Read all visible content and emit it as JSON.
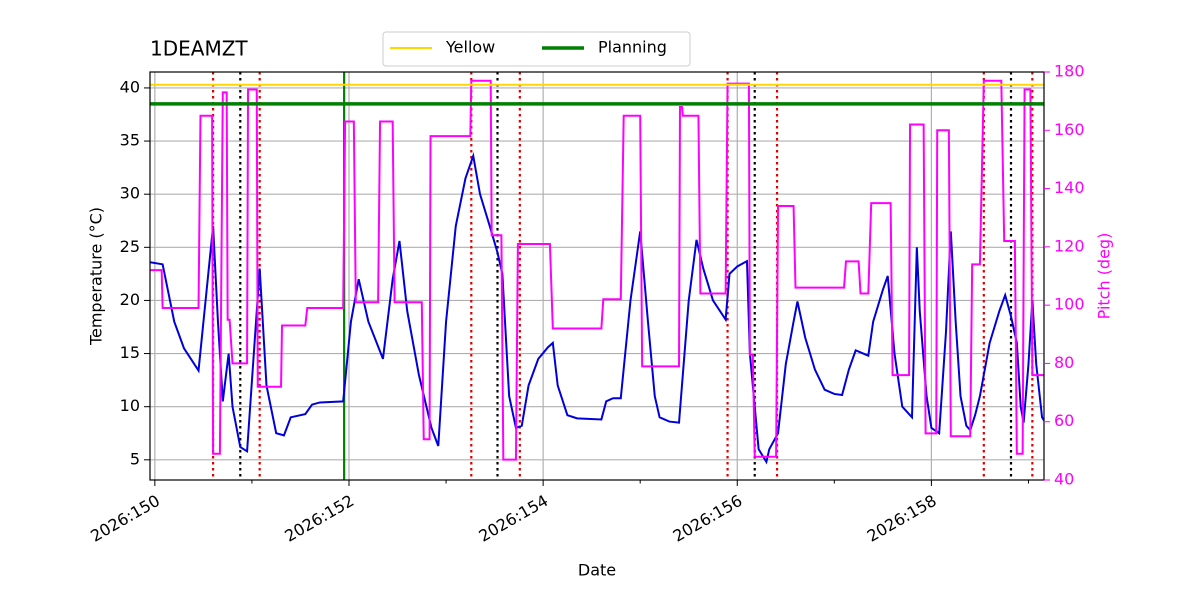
{
  "chart_data": {
    "type": "line",
    "title": "1DEAMZT",
    "xlabel": "Date",
    "ylabel": "Temperature (°C)",
    "y2label": "Pitch (deg)",
    "y2color": "#ff00ff",
    "xlim": [
      149.95,
      159.16
    ],
    "ylim": [
      3.1,
      41.5
    ],
    "y2lim": [
      40,
      180
    ],
    "xticks": [
      {
        "value": 150,
        "label": "2026:150"
      },
      {
        "value": 152,
        "label": "2026:152"
      },
      {
        "value": 154,
        "label": "2026:154"
      },
      {
        "value": 156,
        "label": "2026:156"
      },
      {
        "value": 158,
        "label": "2026:158"
      }
    ],
    "xminorticks": [
      151,
      153,
      155,
      157,
      159
    ],
    "yticks": [
      5,
      10,
      15,
      20,
      25,
      30,
      35,
      40
    ],
    "y2ticks": [
      40,
      60,
      80,
      100,
      120,
      140,
      160,
      180
    ],
    "grid": true,
    "legend": "upper center",
    "series": [
      {
        "color": "#0000dd",
        "axis": "y",
        "x": [
          149.95,
          150.08,
          150.2,
          150.3,
          150.45,
          150.6,
          150.65,
          150.7,
          150.76,
          150.8,
          150.88,
          150.95,
          151.08,
          151.15,
          151.25,
          151.33,
          151.4,
          151.55,
          151.62,
          151.7,
          151.94,
          152.02,
          152.1,
          152.2,
          152.35,
          152.45,
          152.52,
          152.6,
          152.72,
          152.85,
          152.92,
          153.0,
          153.1,
          153.2,
          153.28,
          153.35,
          153.45,
          153.53,
          153.58,
          153.65,
          153.72,
          153.78,
          153.85,
          153.95,
          154.05,
          154.1,
          154.15,
          154.25,
          154.35,
          154.6,
          154.65,
          154.72,
          154.8,
          154.9,
          155.0,
          155.08,
          155.15,
          155.2,
          155.3,
          155.4,
          155.5,
          155.58,
          155.65,
          155.75,
          155.88,
          155.92,
          156.0,
          156.1,
          156.13,
          156.22,
          156.3,
          156.33,
          156.42,
          156.5,
          156.58,
          156.62,
          156.7,
          156.8,
          156.9,
          157.0,
          157.08,
          157.15,
          157.22,
          157.35,
          157.4,
          157.5,
          157.55,
          157.62,
          157.7,
          157.8,
          157.85,
          157.88,
          157.95,
          158.0,
          158.08,
          158.15,
          158.2,
          158.25,
          158.3,
          158.36,
          158.4,
          158.45,
          158.5,
          158.6,
          158.7,
          158.76,
          158.82,
          158.88,
          158.92,
          158.95,
          159.0,
          159.04,
          159.08,
          159.14,
          159.16
        ],
        "values": [
          23.6,
          23.4,
          18,
          15.5,
          13.4,
          27,
          18,
          10.5,
          15,
          10,
          6.2,
          5.8,
          23,
          12,
          7.5,
          7.3,
          9,
          9.3,
          10.2,
          10.4,
          10.5,
          18,
          22,
          18,
          14.5,
          22,
          25.6,
          19,
          13,
          8,
          6.3,
          18,
          27,
          31.5,
          33.6,
          30,
          27,
          24.5,
          22.5,
          11,
          8,
          8.2,
          12,
          14.5,
          15.6,
          16,
          12,
          9.2,
          8.9,
          8.8,
          10.5,
          10.8,
          10.8,
          20,
          26.5,
          18,
          11,
          9,
          8.6,
          8.5,
          20,
          25.7,
          23,
          20,
          18.2,
          22.5,
          23.2,
          23.7,
          15,
          6,
          4.8,
          6,
          7.5,
          14,
          18,
          19.9,
          16.5,
          13.5,
          11.6,
          11.2,
          11.1,
          13.5,
          15.3,
          14.8,
          18,
          21,
          22.3,
          15,
          10,
          9,
          25,
          19,
          11,
          8,
          7.5,
          17,
          26.5,
          18,
          11,
          8.2,
          7.8,
          9.2,
          11,
          16,
          19,
          20.5,
          18.5,
          16,
          10,
          8.5,
          14,
          20,
          14,
          9,
          8.7
        ]
      },
      {
        "color": "#ff00ff",
        "axis": "y2",
        "x": [
          149.95,
          150.07,
          150.08,
          150.45,
          150.47,
          150.59,
          150.6,
          150.67,
          150.7,
          150.74,
          150.75,
          150.77,
          150.8,
          150.95,
          150.96,
          151.05,
          151.06,
          151.3,
          151.31,
          151.55,
          151.57,
          151.94,
          151.96,
          152.05,
          152.07,
          152.3,
          152.32,
          152.45,
          152.47,
          152.75,
          152.77,
          152.83,
          152.84,
          153.25,
          153.26,
          153.46,
          153.47,
          153.57,
          153.59,
          153.72,
          153.74,
          154.07,
          154.1,
          154.6,
          154.62,
          154.8,
          154.83,
          155.0,
          155.02,
          155.4,
          155.41,
          155.43,
          155.44,
          155.6,
          155.62,
          155.88,
          155.9,
          156.12,
          156.13,
          156.16,
          156.18,
          156.4,
          156.42,
          156.58,
          156.6,
          157.1,
          157.12,
          157.25,
          157.27,
          157.35,
          157.38,
          157.58,
          157.6,
          157.77,
          157.78,
          157.92,
          157.94,
          158.05,
          158.06,
          158.18,
          158.2,
          158.4,
          158.42,
          158.5,
          158.54,
          158.72,
          158.75,
          158.86,
          158.88,
          158.94,
          158.96,
          159.02,
          159.04,
          159.16
        ],
        "values": [
          112,
          112,
          99,
          99,
          165,
          165,
          49,
          49,
          173,
          173,
          95,
          95,
          80,
          80,
          174,
          174,
          72,
          72,
          93,
          93,
          99,
          99,
          163,
          163,
          101,
          101,
          163,
          163,
          101,
          101,
          54,
          54,
          158,
          158,
          177,
          177,
          124,
          124,
          47,
          47,
          121,
          121,
          92,
          92,
          102,
          102,
          165,
          165,
          79,
          79,
          168,
          168,
          165,
          165,
          104,
          104,
          176,
          176,
          83,
          83,
          48,
          48,
          134,
          134,
          106,
          106,
          115,
          115,
          104,
          104,
          135,
          135,
          76,
          76,
          162,
          162,
          56,
          56,
          160,
          160,
          55,
          55,
          114,
          114,
          177,
          177,
          122,
          122,
          49,
          49,
          174,
          174,
          76,
          76
        ]
      }
    ],
    "hlines": [
      {
        "name": "Yellow",
        "color": "#ffd700",
        "value": 40.3,
        "width": 2
      },
      {
        "name": "Planning",
        "color": "#008000",
        "value": 38.5,
        "width": 3.5
      }
    ],
    "vlines": [
      {
        "color": "#008000",
        "dash": "solid",
        "x": [
          151.95
        ]
      },
      {
        "color": "#dd0000",
        "dash": "dotted",
        "x": [
          150.6,
          151.08,
          153.26,
          153.76,
          155.9,
          156.41,
          158.54,
          159.04
        ]
      },
      {
        "color": "#000000",
        "dash": "dotted",
        "x": [
          150.88,
          153.53,
          156.18,
          158.82
        ]
      }
    ]
  }
}
